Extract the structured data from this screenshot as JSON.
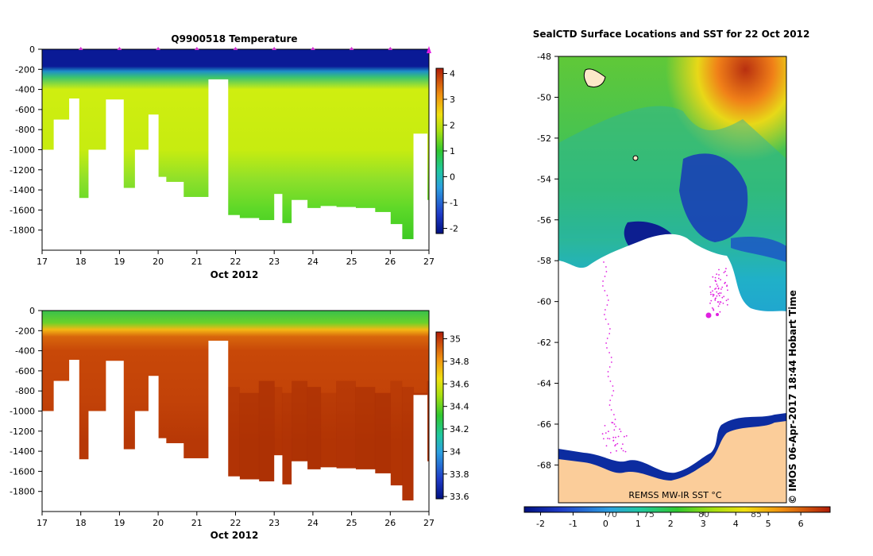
{
  "chart_data": [
    {
      "type": "heatmap",
      "title": "Q9900518  Temperature",
      "xlabel": "Oct 2012",
      "ylabel": "",
      "xlim": [
        17,
        27
      ],
      "ylim": [
        -2000,
        0
      ],
      "x_ticks": [
        17,
        18,
        19,
        20,
        21,
        22,
        23,
        24,
        25,
        26,
        27
      ],
      "y_ticks": [
        0,
        -200,
        -400,
        -600,
        -800,
        -1000,
        -1200,
        -1400,
        -1600,
        -1800
      ],
      "colorbar": {
        "min": -2.2,
        "max": 4.2,
        "ticks": [
          4,
          3,
          2,
          1,
          0,
          -1,
          -2
        ]
      },
      "surface_markers_day": [
        18,
        19,
        20,
        21,
        22,
        23,
        24,
        25,
        26,
        27
      ],
      "profiles": [
        {
          "x": 17.0,
          "max_depth": -1000
        },
        {
          "x": 17.3,
          "max_depth": -700
        },
        {
          "x": 17.7,
          "max_depth": -490
        },
        {
          "x": 17.95,
          "max_depth": -1480
        },
        {
          "x": 18.2,
          "max_depth": -1000
        },
        {
          "x": 18.65,
          "max_depth": -500
        },
        {
          "x": 19.1,
          "max_depth": -1380
        },
        {
          "x": 19.4,
          "max_depth": -1000
        },
        {
          "x": 19.75,
          "max_depth": -650
        },
        {
          "x": 20.0,
          "max_depth": -1270
        },
        {
          "x": 20.2,
          "max_depth": -1320
        },
        {
          "x": 20.65,
          "max_depth": -1470
        },
        {
          "x": 21.3,
          "max_depth": -300
        },
        {
          "x": 21.8,
          "max_depth": -1650
        },
        {
          "x": 22.1,
          "max_depth": -1680
        },
        {
          "x": 22.6,
          "max_depth": -1700
        },
        {
          "x": 23.0,
          "max_depth": -1440
        },
        {
          "x": 23.2,
          "max_depth": -1730
        },
        {
          "x": 23.45,
          "max_depth": -1500
        },
        {
          "x": 23.85,
          "max_depth": -1580
        },
        {
          "x": 24.2,
          "max_depth": -1560
        },
        {
          "x": 24.6,
          "max_depth": -1570
        },
        {
          "x": 25.1,
          "max_depth": -1580
        },
        {
          "x": 25.6,
          "max_depth": -1620
        },
        {
          "x": 26.0,
          "max_depth": -1740
        },
        {
          "x": 26.3,
          "max_depth": -1890
        },
        {
          "x": 26.6,
          "max_depth": -840
        },
        {
          "x": 26.95,
          "max_depth": -1500
        }
      ],
      "vertical_profile": [
        {
          "depth": 0,
          "value": -1.8
        },
        {
          "depth": -80,
          "value": -1.7
        },
        {
          "depth": -110,
          "value": -0.3
        },
        {
          "depth": -140,
          "value": 0.9
        },
        {
          "depth": -200,
          "value": 1.95
        },
        {
          "depth": -500,
          "value": 1.95
        },
        {
          "depth": -800,
          "value": 1.6
        },
        {
          "depth": -1100,
          "value": 1.3
        },
        {
          "depth": -1400,
          "value": 1.1
        },
        {
          "depth": -2000,
          "value": 0.9
        }
      ]
    },
    {
      "type": "heatmap",
      "title": "",
      "xlabel": "Oct 2012",
      "ylabel": "",
      "xlim": [
        17,
        27
      ],
      "ylim": [
        -2000,
        0
      ],
      "x_ticks": [
        17,
        18,
        19,
        20,
        21,
        22,
        23,
        24,
        25,
        26,
        27
      ],
      "y_ticks": [
        0,
        -200,
        -400,
        -600,
        -800,
        -1000,
        -1200,
        -1400,
        -1600,
        -1800
      ],
      "colorbar": {
        "min": 33.58,
        "max": 35.06,
        "ticks": [
          35,
          34.8,
          34.6,
          34.4,
          34.2,
          34,
          33.8,
          33.6
        ]
      },
      "vertical_profile": [
        {
          "depth": 0,
          "value": 34.1
        },
        {
          "depth": -80,
          "value": 34.15
        },
        {
          "depth": -120,
          "value": 34.45
        },
        {
          "depth": -180,
          "value": 34.75
        },
        {
          "depth": -300,
          "value": 34.88
        },
        {
          "depth": -600,
          "value": 34.9
        },
        {
          "depth": -2000,
          "value": 34.92
        }
      ]
    },
    {
      "type": "heatmap",
      "title": "SealCTD Surface Locations and SST for 22 Oct 2012",
      "xlabel": "",
      "ylabel": "",
      "ylim": [
        -69.85,
        -48
      ],
      "y_ticks": [
        -48,
        -50,
        -52,
        -54,
        -56,
        -58,
        -60,
        -62,
        -64,
        -66,
        -68
      ],
      "top_labels": [
        "70",
        "75",
        "80",
        "85"
      ],
      "colorbar": {
        "min": -2.5,
        "max": 6.9,
        "ticks": [
          -2,
          -1,
          0,
          1,
          2,
          3,
          4,
          5,
          6
        ]
      },
      "colorbar_label": "REMSS MW-IR SST °C",
      "credit": "© IMOS 06-Apr-2017 18:44 Hobart Time"
    }
  ]
}
